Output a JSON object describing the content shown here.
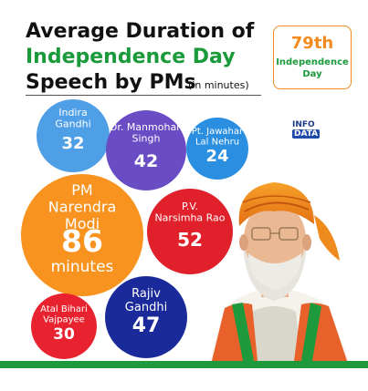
{
  "title": {
    "line1": "Average Duration of",
    "line2": "Independence Day",
    "line3": "Speech by PMs",
    "unit": "(in minutes)"
  },
  "badge": {
    "number": "79th",
    "line1": "Independence",
    "line2": "Day"
  },
  "infodata": {
    "line1": "INFO",
    "line2": "DATA"
  },
  "colors": {
    "orange": "#f7931e",
    "green": "#1a9a3a",
    "lightblue": "#4f9fe6",
    "purple": "#6a4cc4",
    "teal": "#2a8fe0",
    "red": "#e0202a",
    "navy": "#1a2a9a",
    "crimson": "#e8232f"
  },
  "chart_data": {
    "type": "bubble",
    "title": "Average Duration of Independence Day Speech by PMs",
    "unit": "(in minutes)",
    "bubbles": [
      {
        "name": "Indira Gandhi",
        "label_lines": [
          "Indira",
          "Gandhi"
        ],
        "value": 32,
        "value_text": "32"
      },
      {
        "name": "Dr. Manmohan Singh",
        "label_lines": [
          "Dr. Manmohan",
          "Singh"
        ],
        "value": 42,
        "value_text": "42"
      },
      {
        "name": "Pt. Jawahar Lal Nehru",
        "label_lines": [
          "Pt. Jawahar",
          "Lal Nehru"
        ],
        "value": 24,
        "value_text": "24"
      },
      {
        "name": "PM Narendra Modi",
        "label_lines": [
          "PM",
          "Narendra",
          "Modi"
        ],
        "value": 86,
        "value_text": "86",
        "unit_text": "minutes"
      },
      {
        "name": "P.V. Narsimha Rao",
        "label_lines": [
          "P.V.",
          "Narsimha Rao"
        ],
        "value": 52,
        "value_text": "52"
      },
      {
        "name": "Rajiv Gandhi",
        "label_lines": [
          "Rajiv",
          "Gandhi"
        ],
        "value": 47,
        "value_text": "47"
      },
      {
        "name": "Atal Bihari Vajpayee",
        "label_lines": [
          "Atal Bihari",
          "Vajpayee"
        ],
        "value": 30,
        "value_text": "30"
      }
    ]
  }
}
